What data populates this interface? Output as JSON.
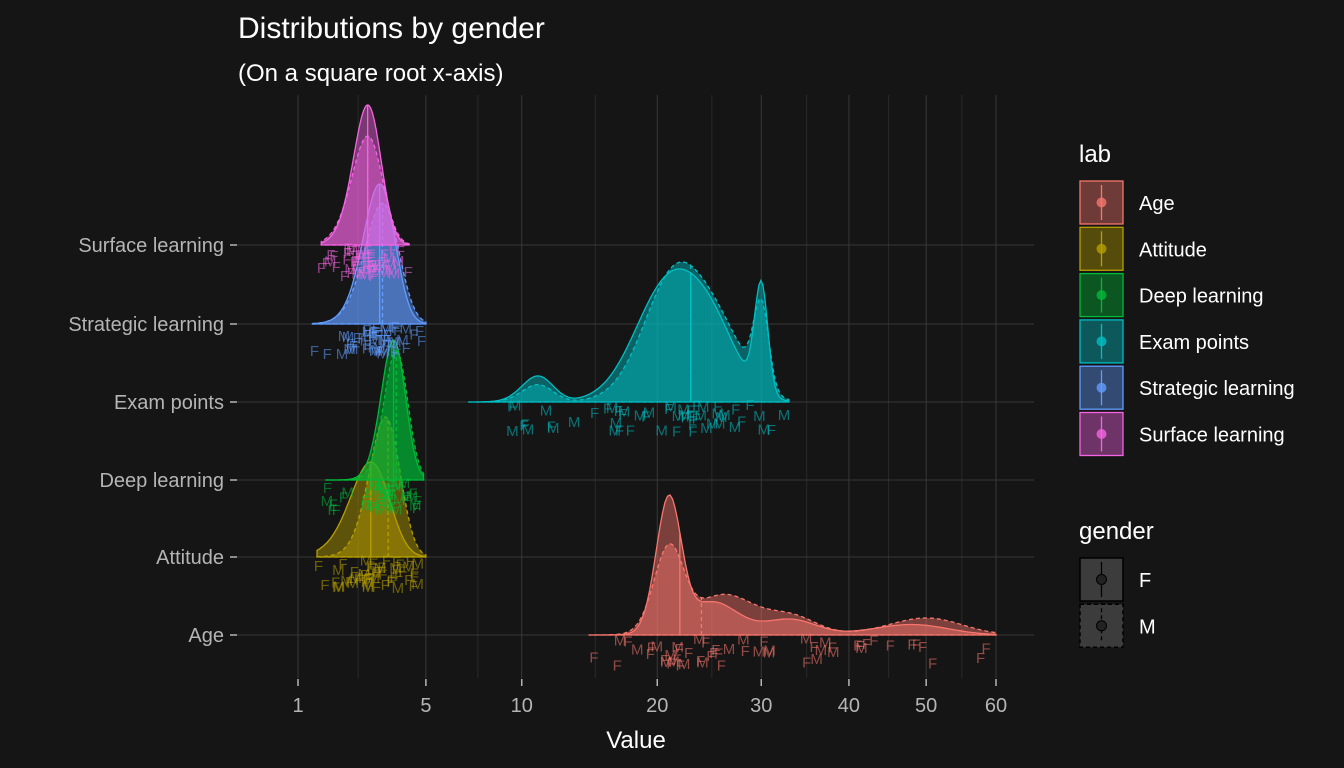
{
  "title": "Distributions by gender",
  "subtitle": "(On a square root x-axis)",
  "chart_data": {
    "type": "ridgeline density",
    "title": "Distributions by gender",
    "subtitle": "(On a square root x-axis)",
    "xlabel": "Value",
    "ylabel": "",
    "x_scale": "sqrt",
    "xlim": [
      0.5,
      64
    ],
    "x_ticks": [
      1,
      5,
      10,
      20,
      30,
      40,
      50,
      60
    ],
    "x_tick_labels": [
      "1",
      "5",
      "10",
      "20",
      "30",
      "40",
      "50",
      "60"
    ],
    "grid": true,
    "legend_position": "right",
    "categories": [
      "Age",
      "Attitude",
      "Deep learning",
      "Exam points",
      "Strategic learning",
      "Surface learning"
    ],
    "colors": {
      "Age": "#F8766D",
      "Attitude": "#B79F00",
      "Deep learning": "#00BA38",
      "Exam points": "#00BFC4",
      "Strategic learning": "#619CFF",
      "Surface learning": "#F564E3"
    },
    "series": [
      {
        "name": "Age",
        "range": [
          14.5,
          60
        ],
        "medians": {
          "F": 22,
          "M": 24
        },
        "F": {
          "peaks": [
            [
              21,
              1.0,
              1.1
            ],
            [
              25,
              0.25,
              2.5
            ],
            [
              33,
              0.12,
              3
            ],
            [
              48,
              0.08,
              5
            ]
          ]
        },
        "M": {
          "peaks": [
            [
              21,
              0.62,
              1.3
            ],
            [
              26,
              0.3,
              3
            ],
            [
              33,
              0.15,
              3
            ],
            [
              50,
              0.13,
              5
            ]
          ]
        }
      },
      {
        "name": "Attitude",
        "range": [
          1.4,
          5.0
        ],
        "medians": {
          "F": 2.9,
          "M": 3.5
        },
        "F": {
          "peaks": [
            [
              2.9,
              0.78,
              0.65
            ]
          ]
        },
        "M": {
          "peaks": [
            [
              3.4,
              1.15,
              0.55
            ]
          ]
        }
      },
      {
        "name": "Deep learning",
        "range": [
          1.6,
          4.9
        ],
        "medians": {
          "F": 3.7,
          "M": 3.8
        },
        "F": {
          "peaks": [
            [
              3.7,
              1.3,
              0.45
            ]
          ]
        },
        "M": {
          "peaks": [
            [
              3.8,
              1.2,
              0.45
            ]
          ]
        }
      },
      {
        "name": "Exam points",
        "range": [
          7,
          33
        ],
        "medians": {
          "F": 23,
          "M": 23
        },
        "F": {
          "peaks": [
            [
              11,
              0.12,
              1.0
            ],
            [
              20,
              0.35,
              2.5
            ],
            [
              24,
              0.45,
              3
            ],
            [
              30,
              0.5,
              0.7
            ]
          ]
        },
        "M": {
          "peaks": [
            [
              11,
              0.08,
              1.0
            ],
            [
              21,
              0.45,
              2.5
            ],
            [
              25,
              0.38,
              3
            ],
            [
              30,
              0.38,
              0.8
            ]
          ]
        }
      },
      {
        "name": "Strategic learning",
        "range": [
          1.3,
          5.0
        ],
        "medians": {
          "F": 3.2,
          "M": 3.3
        },
        "F": {
          "peaks": [
            [
              3.2,
              1.1,
              0.55
            ]
          ]
        },
        "M": {
          "peaks": [
            [
              3.3,
              0.95,
              0.6
            ]
          ]
        }
      },
      {
        "name": "Surface learning",
        "range": [
          1.5,
          4.3
        ],
        "medians": {
          "F": 2.8,
          "M": 2.8
        },
        "F": {
          "peaks": [
            [
              2.8,
              1.8,
              0.45
            ]
          ]
        },
        "M": {
          "peaks": [
            [
              2.8,
              1.4,
              0.5
            ]
          ]
        }
      }
    ]
  },
  "legend": {
    "lab_title": "lab",
    "lab_items": [
      "Age",
      "Attitude",
      "Deep learning",
      "Exam points",
      "Strategic learning",
      "Surface learning"
    ],
    "gender_title": "gender",
    "gender_items": [
      "F",
      "M"
    ],
    "gender_colors": {
      "F": "#3c3c3c",
      "M": "#3c3c3c"
    }
  }
}
